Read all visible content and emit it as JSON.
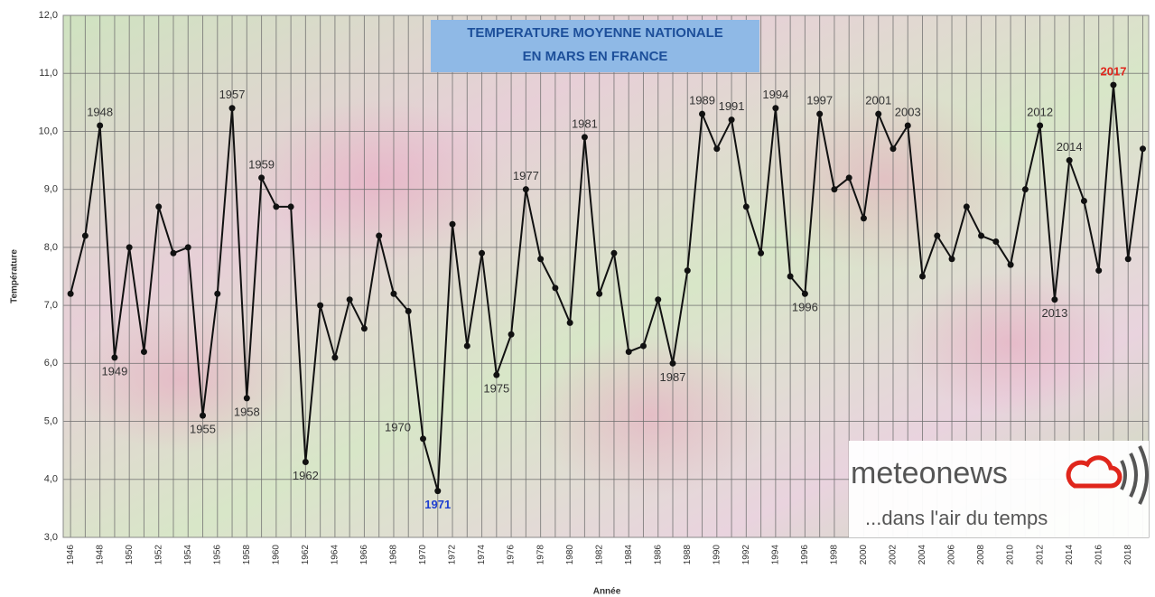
{
  "chart_data": {
    "type": "line",
    "title": [
      "TEMPERATURE MOYENNE NATIONALE",
      "EN MARS EN FRANCE"
    ],
    "x_label": "Année",
    "y_label": "Température",
    "x": [
      1946,
      1947,
      1948,
      1949,
      1950,
      1951,
      1952,
      1953,
      1954,
      1955,
      1956,
      1957,
      1958,
      1959,
      1960,
      1961,
      1962,
      1963,
      1964,
      1965,
      1966,
      1967,
      1968,
      1969,
      1970,
      1971,
      1972,
      1973,
      1974,
      1975,
      1976,
      1977,
      1978,
      1979,
      1980,
      1981,
      1982,
      1983,
      1984,
      1985,
      1986,
      1987,
      1988,
      1989,
      1990,
      1991,
      1992,
      1993,
      1994,
      1995,
      1996,
      1997,
      1998,
      1999,
      2000,
      2001,
      2002,
      2003,
      2004,
      2005,
      2006,
      2007,
      2008,
      2009,
      2010,
      2011,
      2012,
      2013,
      2014,
      2015,
      2016,
      2017,
      2018,
      2019
    ],
    "values": [
      7.2,
      8.2,
      10.1,
      6.1,
      8.0,
      6.2,
      8.7,
      7.9,
      8.0,
      5.1,
      7.2,
      10.4,
      5.4,
      9.2,
      8.7,
      8.7,
      4.3,
      7.0,
      6.1,
      7.1,
      6.6,
      8.2,
      7.2,
      6.9,
      4.7,
      3.8,
      8.4,
      6.3,
      7.9,
      5.8,
      6.5,
      9.0,
      7.8,
      7.3,
      6.7,
      9.9,
      7.2,
      7.9,
      6.2,
      6.3,
      7.1,
      6.0,
      7.6,
      10.3,
      9.7,
      10.2,
      8.7,
      7.9,
      10.4,
      7.5,
      7.2,
      10.3,
      9.0,
      9.2,
      8.5,
      10.3,
      9.7,
      10.1,
      7.5,
      8.2,
      7.8,
      8.7,
      8.2,
      8.1,
      7.7,
      9.0,
      10.1,
      7.1,
      9.5,
      8.8,
      7.6,
      10.8,
      7.8,
      9.7
    ],
    "color": "#111111",
    "xlim": [
      1945.5,
      2019.4
    ],
    "xticks": [
      1946,
      1948,
      1950,
      1952,
      1954,
      1956,
      1958,
      1960,
      1962,
      1964,
      1966,
      1968,
      1970,
      1972,
      1974,
      1976,
      1978,
      1980,
      1982,
      1984,
      1986,
      1988,
      1990,
      1992,
      1994,
      1996,
      1998,
      2000,
      2002,
      2004,
      2006,
      2008,
      2010,
      2012,
      2014,
      2016,
      2018
    ],
    "ylim": [
      3,
      12
    ],
    "yticks": [
      {
        "value": 3,
        "label": "3,0"
      },
      {
        "value": 4,
        "label": "4,0"
      },
      {
        "value": 5,
        "label": "5,0"
      },
      {
        "value": 6,
        "label": "6,0"
      },
      {
        "value": 7,
        "label": "7,0"
      },
      {
        "value": 8,
        "label": "8,0"
      },
      {
        "value": 9,
        "label": "9,0"
      },
      {
        "value": 10,
        "label": "10,0"
      },
      {
        "value": 11,
        "label": "11,0"
      },
      {
        "value": 12,
        "label": "12,0"
      }
    ],
    "grid": true,
    "annotations": [
      {
        "text": "1948",
        "x": 1948,
        "side": "above"
      },
      {
        "text": "1949",
        "x": 1949,
        "side": "below"
      },
      {
        "text": "1955",
        "x": 1955,
        "side": "below"
      },
      {
        "text": "1957",
        "x": 1957,
        "side": "above"
      },
      {
        "text": "1958",
        "x": 1958,
        "side": "below"
      },
      {
        "text": "1959",
        "x": 1959,
        "side": "above"
      },
      {
        "text": "1962",
        "x": 1962,
        "side": "below"
      },
      {
        "text": "1970",
        "x": 1970,
        "side": "left"
      },
      {
        "text": "1971",
        "x": 1971,
        "side": "below",
        "color": "#1f3fd0"
      },
      {
        "text": "1975",
        "x": 1975,
        "side": "below"
      },
      {
        "text": "1977",
        "x": 1977,
        "side": "above"
      },
      {
        "text": "1981",
        "x": 1981,
        "side": "above"
      },
      {
        "text": "1987",
        "x": 1987,
        "side": "below"
      },
      {
        "text": "1989",
        "x": 1989,
        "side": "above"
      },
      {
        "text": "1991",
        "x": 1991,
        "side": "above"
      },
      {
        "text": "1994",
        "x": 1994,
        "side": "above"
      },
      {
        "text": "1996",
        "x": 1996,
        "side": "below"
      },
      {
        "text": "1997",
        "x": 1997,
        "side": "above"
      },
      {
        "text": "2001",
        "x": 2001,
        "side": "above"
      },
      {
        "text": "2003",
        "x": 2003,
        "side": "above"
      },
      {
        "text": "2012",
        "x": 2012,
        "side": "above"
      },
      {
        "text": "2013",
        "x": 2013,
        "side": "below"
      },
      {
        "text": "2014",
        "x": 2014,
        "side": "above"
      },
      {
        "text": "2017",
        "x": 2017,
        "side": "above",
        "color": "#e0261c"
      }
    ]
  },
  "logo": {
    "name": "meteonews",
    "tagline": "...dans l'air du temps"
  }
}
